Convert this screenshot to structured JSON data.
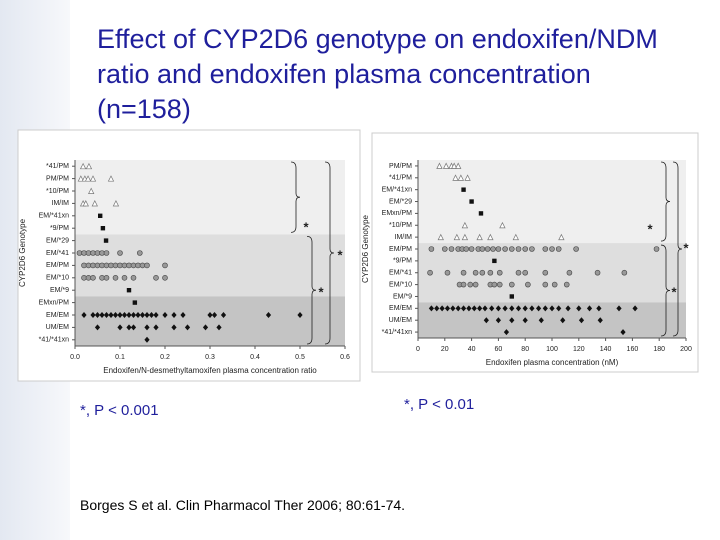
{
  "title": [
    "Effect of CYP2D6 genotype on endoxifen/NDM",
    "ratio and endoxifen plasma concentration",
    "(n=158)"
  ],
  "chart_data": [
    {
      "type": "strip",
      "x_label": "Endoxifen/N-desmethyltamoxifen plasma concentration ratio",
      "y_label": "CYP2D6 Genotype",
      "categories": [
        "*41/PM",
        "PM/PM",
        "*10/PM",
        "IM/IM",
        "EM/*41xn",
        "*9/PM",
        "EM/*29",
        "EM/*41",
        "EM/PM",
        "EM/*10",
        "EM/*9",
        "EMxn/PM",
        "EM/EM",
        "UM/EM",
        "*41/*41xn"
      ],
      "markers": [
        "triangle",
        "triangle",
        "triangle",
        "triangle",
        "square",
        "square",
        "square",
        "circle",
        "circle",
        "circle",
        "square",
        "square",
        "diamond",
        "diamond",
        "diamond"
      ],
      "values": [
        [
          0.018,
          0.031
        ],
        [
          0.013,
          0.022,
          0.029,
          0.04,
          0.08
        ],
        [
          0.036
        ],
        [
          0.018,
          0.024,
          0.044,
          0.091
        ],
        [
          0.056
        ],
        [
          0.062
        ],
        [
          0.069
        ],
        [
          0.01,
          0.02,
          0.03,
          0.04,
          0.05,
          0.06,
          0.07,
          0.1,
          0.144
        ],
        [
          0.02,
          0.03,
          0.04,
          0.05,
          0.06,
          0.07,
          0.08,
          0.09,
          0.1,
          0.11,
          0.12,
          0.13,
          0.14,
          0.15,
          0.16,
          0.2
        ],
        [
          0.02,
          0.03,
          0.04,
          0.06,
          0.07,
          0.09,
          0.11,
          0.13,
          0.18,
          0.2
        ],
        [
          0.12
        ],
        [
          0.133
        ],
        [
          0.02,
          0.04,
          0.05,
          0.06,
          0.07,
          0.08,
          0.09,
          0.1,
          0.11,
          0.12,
          0.13,
          0.14,
          0.15,
          0.16,
          0.17,
          0.18,
          0.2,
          0.22,
          0.24,
          0.3,
          0.31,
          0.33,
          0.43,
          0.5
        ],
        [
          0.05,
          0.1,
          0.12,
          0.13,
          0.16,
          0.18,
          0.22,
          0.25,
          0.29,
          0.32
        ],
        [
          0.16
        ]
      ],
      "xlim": [
        0,
        0.6
      ],
      "xticks": [
        {
          "value": 0,
          "label": "0.0"
        },
        0.1,
        0.2,
        0.3,
        0.4,
        0.5,
        0.6
      ],
      "annotations": [
        "*",
        "*",
        "*"
      ]
    },
    {
      "type": "strip",
      "x_label": "Endoxifen plasma concentration (nM)",
      "y_label": "CYP2D6 Genotype",
      "categories": [
        "PM/PM",
        "*41/PM",
        "EM/*41xn",
        "EM/*29",
        "EMxn/PM",
        "*10/PM",
        "IM/IM",
        "EM/PM",
        "*9/PM",
        "EM/*41",
        "EM/*10",
        "EM/*9",
        "EM/EM",
        "UM/EM",
        "*41/*41xn"
      ],
      "markers": [
        "triangle",
        "triangle",
        "square",
        "square",
        "square",
        "triangle",
        "triangle",
        "circle",
        "square",
        "circle",
        "circle",
        "square",
        "diamond",
        "diamond",
        "diamond"
      ],
      "values": [
        [
          16,
          21,
          25,
          27,
          30
        ],
        [
          28,
          32,
          37
        ],
        [
          34
        ],
        [
          40
        ],
        [
          47
        ],
        [
          35,
          63
        ],
        [
          17,
          29,
          35,
          46,
          54,
          73,
          107
        ],
        [
          10,
          20,
          25,
          30,
          33,
          36,
          40,
          45,
          48,
          52,
          56,
          60,
          65,
          70,
          75,
          80,
          85,
          95,
          100,
          105,
          118,
          178
        ],
        [
          57
        ],
        [
          9,
          22,
          34,
          43,
          48,
          54,
          61,
          75,
          80,
          95,
          113,
          134,
          154
        ],
        [
          31,
          34,
          39,
          43,
          54,
          57,
          61,
          70,
          82,
          95,
          102,
          111
        ],
        [
          70
        ],
        [
          10,
          14,
          18,
          22,
          26,
          30,
          34,
          38,
          42,
          46,
          50,
          55,
          60,
          65,
          70,
          75,
          80,
          85,
          90,
          95,
          100,
          105,
          112,
          120,
          128,
          135,
          150,
          162
        ],
        [
          51,
          60,
          70,
          80,
          92,
          108,
          122,
          136
        ],
        [
          66,
          153
        ]
      ],
      "xlim": [
        0,
        200
      ],
      "xticks": [
        0,
        20,
        40,
        60,
        80,
        100,
        120,
        140,
        160,
        180,
        200
      ],
      "annotations": [
        "*",
        "*",
        "*"
      ]
    }
  ],
  "notes": [
    "*, P < 0.001",
    "*, P < 0.01"
  ],
  "citation": "Borges S et al.  Clin Pharmacol Ther 2006; 80:61-74."
}
